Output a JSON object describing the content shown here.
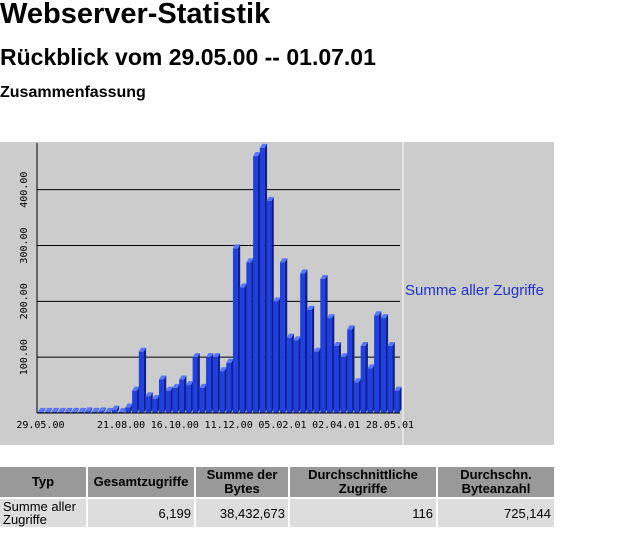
{
  "page": {
    "title": "Webserver-Statistik",
    "subtitle": "Rückblick vom 29.05.00 -- 01.07.01",
    "section": "Zusammenfassung"
  },
  "colors": {
    "bar_front": "#1f3fe0",
    "bar_side": "#0d1f8c",
    "bar_top": "#5a78ff",
    "panel": "#cccccc",
    "legend_text": "#2233cc"
  },
  "chart_data": {
    "type": "bar",
    "legend": "Summe aller Zugriffe",
    "ylim": [
      0,
      480
    ],
    "yticks": [
      "100.00",
      "200.00",
      "300.00",
      "400.00"
    ],
    "ytick_values": [
      100,
      200,
      300,
      400
    ],
    "xtick_labels": [
      "29.05.00",
      "21.08.00",
      "16.10.00",
      "11.12.00",
      "05.02.01",
      "02.04.01",
      "28.05.01"
    ],
    "xtick_indices": [
      0,
      12,
      20,
      28,
      36,
      44,
      52
    ],
    "series": [
      {
        "values": [
          2,
          2,
          2,
          2,
          2,
          2,
          2,
          3,
          2,
          3,
          2,
          6,
          2,
          10,
          40,
          110,
          30,
          25,
          60,
          40,
          45,
          60,
          50,
          100,
          45,
          100,
          100,
          75,
          90,
          295,
          225,
          270,
          460,
          475,
          380,
          200,
          270,
          135,
          130,
          250,
          185,
          110,
          240,
          170,
          120,
          100,
          150,
          55,
          120,
          80,
          175,
          170,
          120,
          40
        ]
      }
    ]
  },
  "table": {
    "headers": [
      "Typ",
      "Gesamtzugriffe",
      "Summe der Bytes",
      "Durchschnittliche Zugriffe",
      "Durchschn. Byteanzahl"
    ],
    "row": [
      "Summe aller Zugriffe",
      "6,199",
      "38,432,673",
      "116",
      "725,144"
    ]
  }
}
